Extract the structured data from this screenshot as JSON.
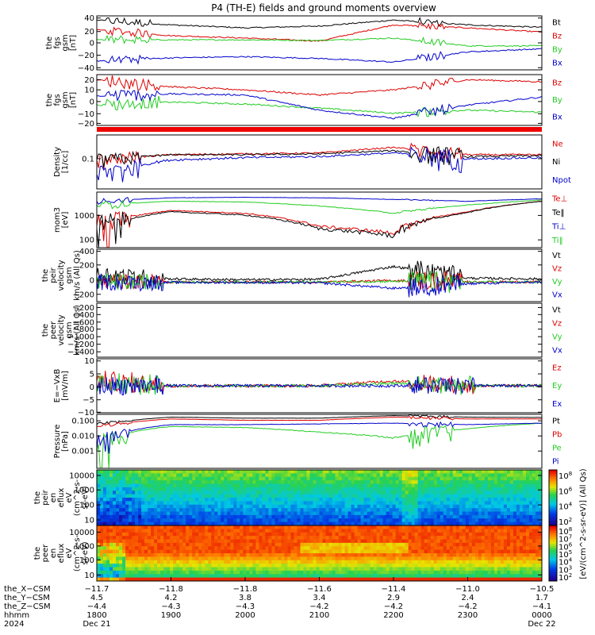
{
  "title": "P4 (TH-E) fields and ground moments overview",
  "colors": {
    "black": "#000000",
    "red": "#dd0000",
    "green": "#22cc22",
    "blue": "#0000cc"
  },
  "panels": [
    {
      "id": "fgs-gsm-tot",
      "ylabel": [
        "the",
        "fgs",
        "gsm",
        "[nT]"
      ],
      "yticks": [
        "40",
        "20",
        "0",
        "−20",
        "−40"
      ],
      "legend": [
        {
          "label": "Bt",
          "color": "black"
        },
        {
          "label": "Bz",
          "color": "red"
        },
        {
          "label": "By",
          "color": "green"
        },
        {
          "label": "Bx",
          "color": "blue"
        }
      ]
    },
    {
      "id": "fgs-gsm",
      "ylabel": [
        "the",
        "fgs",
        "gsm",
        "[nT]"
      ],
      "yticks": [
        "20",
        "10",
        "0",
        "−10",
        "−20"
      ],
      "legend": [
        {
          "label": "Bz",
          "color": "red"
        },
        {
          "label": "By",
          "color": "green"
        },
        {
          "label": "Bx",
          "color": "blue"
        }
      ]
    },
    {
      "id": "density",
      "ylabel": [
        "Density",
        "[1/cc]"
      ],
      "yticks": [
        "0.1"
      ],
      "legend": [
        {
          "label": "Ne",
          "color": "red"
        },
        {
          "label": "Ni",
          "color": "black"
        },
        {
          "label": "Npot",
          "color": "blue"
        }
      ]
    },
    {
      "id": "temperature",
      "ylabel": [
        "mom3",
        "[eV]"
      ],
      "yticks": [
        "1000",
        "100"
      ],
      "legend": [
        {
          "label": "Te⊥",
          "color": "red"
        },
        {
          "label": "Te‖",
          "color": "black"
        },
        {
          "label": "Ti⊥",
          "color": "blue"
        },
        {
          "label": "Ti‖",
          "color": "green"
        }
      ]
    },
    {
      "id": "peir-velocity",
      "ylabel": [
        "the",
        "peir",
        "velocity",
        "gsm",
        "km/s (All Qs)"
      ],
      "yticks": [
        "400",
        "200",
        "0",
        "−200"
      ],
      "legend": [
        {
          "label": "Vt",
          "color": "black"
        },
        {
          "label": "Vz",
          "color": "red"
        },
        {
          "label": "Vy",
          "color": "green"
        },
        {
          "label": "Vx",
          "color": "blue"
        }
      ]
    },
    {
      "id": "peer-velocity",
      "ylabel": [
        "the",
        "peer",
        "velocity",
        "gsm",
        "km/s (All Qs)"
      ],
      "yticks": [
        "−200",
        "−400",
        "−600",
        "−800",
        "−1000",
        "−1200",
        "−1400"
      ],
      "legend": [
        {
          "label": "Vt",
          "color": "black"
        },
        {
          "label": "Vz",
          "color": "red"
        },
        {
          "label": "Vy",
          "color": "green"
        },
        {
          "label": "Vx",
          "color": "blue"
        }
      ]
    },
    {
      "id": "efield",
      "ylabel": [
        "E=−VxB",
        "[mV/m]"
      ],
      "yticks": [
        "10",
        "5",
        "0",
        "−5",
        "−10"
      ],
      "legend": [
        {
          "label": "Ez",
          "color": "red"
        },
        {
          "label": "Ey",
          "color": "green"
        },
        {
          "label": "Ex",
          "color": "blue"
        }
      ]
    },
    {
      "id": "pressure",
      "ylabel": [
        "Pressure",
        "[nPa]"
      ],
      "yticks": [
        "0.100",
        "0.010",
        "0.001"
      ],
      "legend": [
        {
          "label": "Pt",
          "color": "black"
        },
        {
          "label": "Pb",
          "color": "red"
        },
        {
          "label": "Pe",
          "color": "green"
        },
        {
          "label": "Pi",
          "color": "blue"
        }
      ]
    },
    {
      "id": "peir-eflux",
      "ylabel": [
        "the",
        "peir",
        "en",
        "eflux",
        "eV",
        "(cm^2-s-",
        "sr-eV)"
      ],
      "yticks": [
        "10000",
        "1000",
        "100",
        "10"
      ],
      "colorbar_ticks": [
        "10^8",
        "10^6",
        "10^4",
        "10^2"
      ],
      "colorbar_label": "[eV/(cm^2-s-sr-eV)] (All Qs)"
    },
    {
      "id": "peer-eflux",
      "ylabel": [
        "the",
        "peer",
        "en",
        "eflux",
        "eV",
        "(cm^2-s-",
        "sr-eV)"
      ],
      "yticks": [
        "10000",
        "1000",
        "100",
        "10"
      ],
      "colorbar_ticks": [
        "10^8",
        "10^7",
        "10^6",
        "10^5",
        "10^4",
        "10^3",
        "10^2"
      ]
    }
  ],
  "x_axis": {
    "row_labels": [
      "the_X−CSM",
      "the_Y−CSM",
      "the_Z−CSM",
      "hhmm",
      "2024"
    ],
    "columns": [
      [
        "−11.7",
        "4.5",
        "−4.4",
        "1800",
        "Dec 21"
      ],
      [
        "−11.8",
        "4.2",
        "−4.3",
        "1900",
        ""
      ],
      [
        "−11.8",
        "3.8",
        "−4.3",
        "2000",
        ""
      ],
      [
        "−11.6",
        "3.4",
        "−4.2",
        "2100",
        ""
      ],
      [
        "−11.4",
        "2.9",
        "−4.2",
        "2200",
        ""
      ],
      [
        "−11.0",
        "2.4",
        "−4.2",
        "2300",
        ""
      ],
      [
        "−10.5",
        "1.7",
        "−4.1",
        "0000",
        "Dec 22"
      ]
    ]
  },
  "chart_data": {
    "type": "line",
    "title": "P4 (TH-E) fields and ground moments overview",
    "x": [
      "1800",
      "1900",
      "2000",
      "2100",
      "2200",
      "2300",
      "0000"
    ],
    "panels": [
      {
        "name": "the fgs gsm [nT] (total)",
        "ylim": [
          -45,
          45
        ],
        "series": [
          {
            "name": "Bt",
            "values": [
              38,
              30,
              25,
              28,
              38,
              30,
              26
            ]
          },
          {
            "name": "Bz",
            "values": [
              22,
              12,
              8,
              3,
              30,
              25,
              18
            ]
          },
          {
            "name": "By",
            "values": [
              5,
              5,
              5,
              4,
              8,
              -5,
              -5
            ]
          },
          {
            "name": "Bx",
            "values": [
              -30,
              -25,
              -23,
              -26,
              -32,
              -15,
              -10
            ]
          }
        ]
      },
      {
        "name": "the fgs gsm [nT]",
        "ylim": [
          -25,
          25
        ],
        "series": [
          {
            "name": "Bz",
            "values": [
              20,
              13,
              10,
              5,
              10,
              20,
              18
            ]
          },
          {
            "name": "By",
            "values": [
              -5,
              -2,
              -4,
              -8,
              -13,
              -10,
              -12
            ]
          },
          {
            "name": "Bx",
            "values": [
              4,
              6,
              5,
              -10,
              -18,
              -5,
              3
            ]
          }
        ]
      },
      {
        "name": "Density [1/cc]",
        "ylim": [
          0.03,
          0.6
        ],
        "series": [
          {
            "name": "Ne",
            "values": [
              0.15,
              0.2,
              0.21,
              0.22,
              0.3,
              0.2,
              0.2
            ]
          },
          {
            "name": "Ni",
            "values": [
              0.15,
              0.2,
              0.2,
              0.21,
              0.25,
              0.18,
              0.19
            ]
          },
          {
            "name": "Npot",
            "values": [
              0.06,
              0.15,
              0.17,
              0.18,
              0.22,
              0.16,
              0.17
            ]
          }
        ]
      },
      {
        "name": "mom3 [eV]",
        "ylim": [
          60,
          4000
        ],
        "series": [
          {
            "name": "Te⊥",
            "values": [
              300,
              1000,
              800,
              300,
              180,
              900,
              2000
            ]
          },
          {
            "name": "Te‖",
            "values": [
              250,
              900,
              700,
              250,
              150,
              850,
              2000
            ]
          },
          {
            "name": "Ti⊥",
            "values": [
              2000,
              2600,
              2700,
              2600,
              2300,
              2000,
              2400
            ]
          },
          {
            "name": "Ti‖",
            "values": [
              1500,
              2000,
              1900,
              1400,
              800,
              1500,
              2200
            ]
          }
        ]
      },
      {
        "name": "the peir velocity gsm km/s (All Qs)",
        "ylim": [
          -250,
          420
        ],
        "series": [
          {
            "name": "Vt",
            "values": [
              100,
              40,
              30,
              35,
              200,
              50,
              40
            ]
          },
          {
            "name": "Vz",
            "values": [
              0,
              0,
              0,
              0,
              20,
              5,
              0
            ]
          },
          {
            "name": "Vy",
            "values": [
              0,
              0,
              0,
              0,
              10,
              0,
              0
            ]
          },
          {
            "name": "Vx",
            "values": [
              0,
              -5,
              -5,
              -10,
              -80,
              -20,
              0
            ]
          }
        ]
      },
      {
        "name": "E=−VxB [mV/m]",
        "ylim": [
          -11,
          11
        ],
        "series": [
          {
            "name": "Ez",
            "values": [
              2,
              0,
              0,
              0,
              2,
              0,
              0
            ]
          },
          {
            "name": "Ey",
            "values": [
              1,
              0,
              0,
              0,
              1,
              0,
              0
            ]
          },
          {
            "name": "Ex",
            "values": [
              0,
              0,
              0,
              0,
              0,
              0,
              0
            ]
          }
        ]
      },
      {
        "name": "Pressure [nPa]",
        "ylim": [
          0.0005,
          0.35
        ],
        "series": [
          {
            "name": "Pt",
            "values": [
              0.1,
              0.25,
              0.22,
              0.22,
              0.3,
              0.25,
              0.24
            ]
          },
          {
            "name": "Pb",
            "values": [
              0.08,
              0.2,
              0.17,
              0.17,
              0.25,
              0.2,
              0.2
            ]
          },
          {
            "name": "Pe",
            "values": [
              0.005,
              0.08,
              0.07,
              0.04,
              0.02,
              0.06,
              0.12
            ]
          },
          {
            "name": "Pi",
            "values": [
              0.005,
              0.1,
              0.1,
              0.11,
              0.12,
              0.1,
              0.12
            ]
          }
        ]
      }
    ]
  }
}
